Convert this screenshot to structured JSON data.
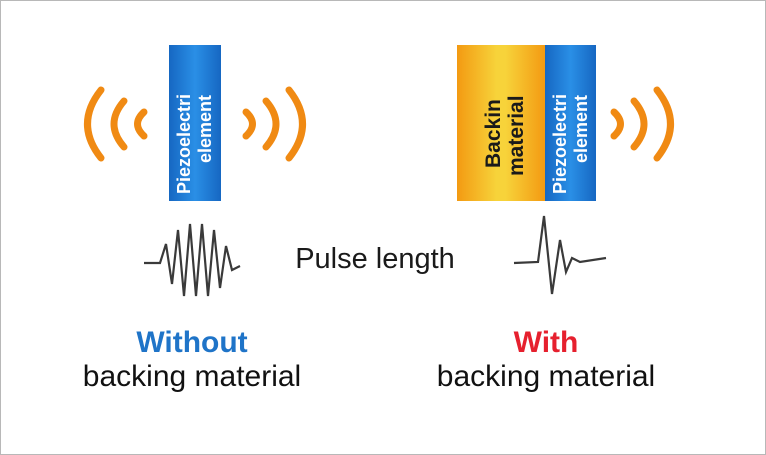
{
  "left_transducer": {
    "element_lines": [
      "Piezoelectri",
      "element"
    ]
  },
  "right_transducer": {
    "backing_lines": [
      "Backin",
      "material"
    ],
    "element_lines": [
      "Piezoelectri",
      "element"
    ]
  },
  "pulse_label": "Pulse length",
  "left_caption": {
    "emphasis": "Without",
    "rest": "backing material"
  },
  "right_caption": {
    "emphasis": "With",
    "rest": "backing material"
  },
  "colors": {
    "element_blue": "#1a7bd4",
    "backing_gold": "#f4c531",
    "wave_orange": "#f08a13",
    "without_blue": "#1f74c8",
    "with_red": "#e6202e",
    "waveform_gray": "#3a3a3a"
  }
}
